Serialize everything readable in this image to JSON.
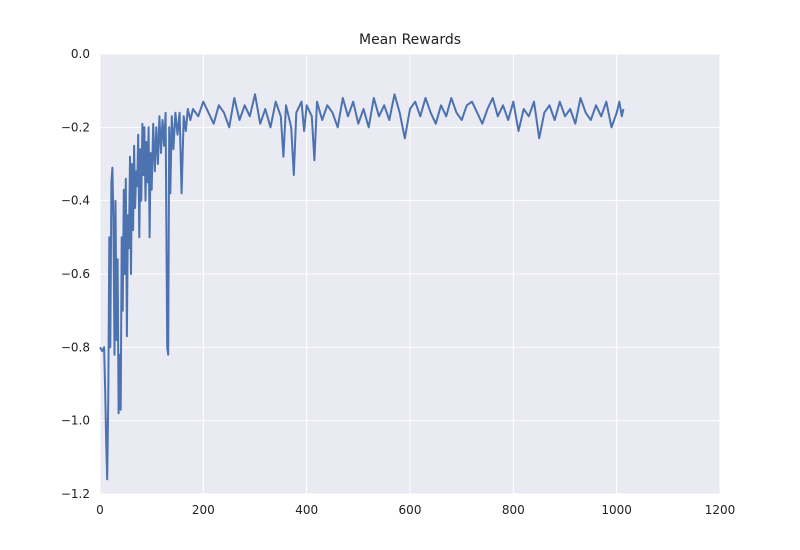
{
  "chart_data": {
    "type": "line",
    "title": "Mean Rewards",
    "xlabel": "",
    "ylabel": "",
    "xlim": [
      0,
      1200
    ],
    "ylim": [
      -1.2,
      0.0
    ],
    "x_ticks": [
      "0",
      "200",
      "400",
      "600",
      "800",
      "1000",
      "1200"
    ],
    "y_ticks": [
      "0.0",
      "−0.2",
      "−0.4",
      "−0.6",
      "−0.8",
      "−1.0",
      "−1.2"
    ],
    "grid": true,
    "legend": "none",
    "colors": {
      "background": "#eaeaf2",
      "grid": "#ffffff",
      "line": "#4c72b0"
    },
    "series": [
      {
        "x": [
          0,
          4,
          8,
          10,
          12,
          14,
          16,
          18,
          20,
          22,
          24,
          26,
          28,
          30,
          32,
          34,
          36,
          38,
          40,
          42,
          44,
          46,
          48,
          50,
          52,
          54,
          56,
          58,
          60,
          62,
          64,
          66,
          68,
          70,
          72,
          74,
          76,
          78,
          80,
          82,
          84,
          86,
          88,
          90,
          92,
          94,
          96,
          98,
          100,
          103,
          106,
          109,
          112,
          115,
          118,
          121,
          124,
          127,
          130,
          132,
          134,
          136,
          139,
          142,
          146,
          150,
          154,
          158,
          162,
          166,
          170,
          175,
          180,
          190,
          200,
          210,
          220,
          230,
          240,
          250,
          260,
          270,
          280,
          290,
          300,
          310,
          320,
          330,
          340,
          350,
          355,
          360,
          370,
          375,
          380,
          390,
          395,
          400,
          410,
          415,
          420,
          430,
          440,
          450,
          460,
          470,
          480,
          490,
          500,
          510,
          520,
          530,
          540,
          550,
          560,
          570,
          580,
          590,
          600,
          610,
          620,
          630,
          640,
          650,
          660,
          670,
          680,
          690,
          700,
          710,
          720,
          730,
          740,
          750,
          760,
          770,
          780,
          790,
          800,
          810,
          820,
          830,
          840,
          850,
          860,
          870,
          880,
          890,
          900,
          910,
          920,
          930,
          940,
          950,
          960,
          970,
          980,
          990,
          1000,
          1005,
          1010,
          1013
        ],
        "y": [
          -0.8,
          -0.81,
          -0.8,
          -0.92,
          -1.06,
          -1.16,
          -0.93,
          -0.5,
          -0.8,
          -0.35,
          -0.31,
          -0.45,
          -0.82,
          -0.4,
          -0.78,
          -0.56,
          -0.98,
          -0.82,
          -0.97,
          -0.5,
          -0.7,
          -0.37,
          -0.6,
          -0.34,
          -0.77,
          -0.44,
          -0.53,
          -0.28,
          -0.6,
          -0.3,
          -0.48,
          -0.25,
          -0.42,
          -0.32,
          -0.36,
          -0.22,
          -0.5,
          -0.26,
          -0.4,
          -0.19,
          -0.33,
          -0.2,
          -0.4,
          -0.24,
          -0.35,
          -0.2,
          -0.5,
          -0.27,
          -0.37,
          -0.19,
          -0.32,
          -0.2,
          -0.3,
          -0.17,
          -0.27,
          -0.18,
          -0.25,
          -0.16,
          -0.8,
          -0.82,
          -0.2,
          -0.38,
          -0.17,
          -0.26,
          -0.16,
          -0.22,
          -0.16,
          -0.38,
          -0.17,
          -0.21,
          -0.15,
          -0.18,
          -0.15,
          -0.17,
          -0.13,
          -0.16,
          -0.19,
          -0.14,
          -0.16,
          -0.2,
          -0.12,
          -0.18,
          -0.14,
          -0.17,
          -0.11,
          -0.19,
          -0.15,
          -0.2,
          -0.13,
          -0.17,
          -0.28,
          -0.14,
          -0.2,
          -0.33,
          -0.16,
          -0.13,
          -0.21,
          -0.14,
          -0.17,
          -0.29,
          -0.13,
          -0.18,
          -0.14,
          -0.16,
          -0.2,
          -0.12,
          -0.17,
          -0.13,
          -0.19,
          -0.15,
          -0.2,
          -0.12,
          -0.17,
          -0.14,
          -0.18,
          -0.11,
          -0.16,
          -0.23,
          -0.15,
          -0.13,
          -0.17,
          -0.12,
          -0.16,
          -0.19,
          -0.14,
          -0.17,
          -0.12,
          -0.16,
          -0.18,
          -0.14,
          -0.13,
          -0.16,
          -0.19,
          -0.15,
          -0.12,
          -0.17,
          -0.14,
          -0.18,
          -0.13,
          -0.21,
          -0.15,
          -0.17,
          -0.13,
          -0.23,
          -0.16,
          -0.14,
          -0.18,
          -0.13,
          -0.17,
          -0.15,
          -0.19,
          -0.12,
          -0.16,
          -0.18,
          -0.14,
          -0.17,
          -0.13,
          -0.2,
          -0.16,
          -0.13,
          -0.17,
          -0.15
        ]
      }
    ]
  }
}
